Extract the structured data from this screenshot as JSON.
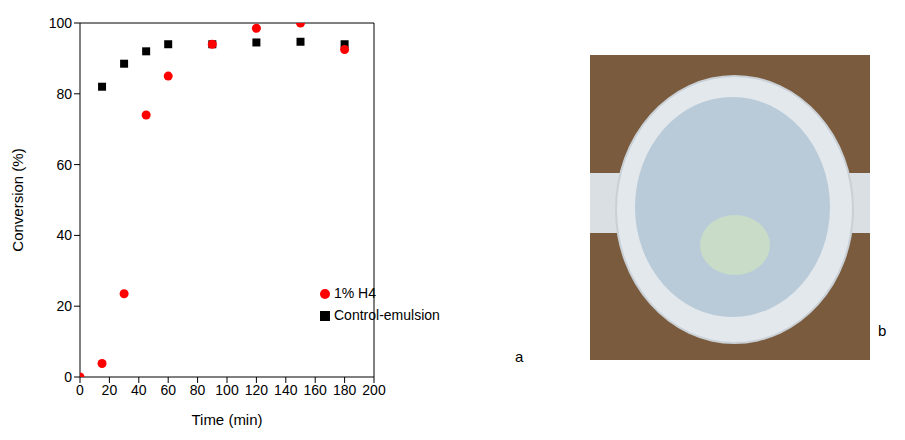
{
  "chart_data": {
    "type": "scatter",
    "x_label": "Time (min)",
    "y_label": "Conversion (%)",
    "x": [
      0,
      15,
      30,
      45,
      60,
      90,
      120,
      150,
      180
    ],
    "series": [
      {
        "name": "Control-emulsion",
        "color": "#000000",
        "marker": "square",
        "values": [
          null,
          82,
          88.5,
          92,
          94,
          94,
          94.5,
          94.7,
          94
        ]
      },
      {
        "name": "1% H4",
        "color": "#ff0000",
        "marker": "circle",
        "values": [
          0,
          3.8,
          23.5,
          74,
          85,
          94,
          98.5,
          100,
          92.5
        ]
      }
    ],
    "xlim": [
      0,
      200
    ],
    "xticks": [
      0,
      20,
      40,
      60,
      80,
      100,
      120,
      140,
      160,
      180,
      200
    ],
    "ylim": [
      0,
      100
    ],
    "yticks": [
      0,
      20,
      40,
      60,
      80,
      100
    ],
    "grid": false,
    "legend": "lower right",
    "annotations": [
      "a"
    ]
  },
  "image": {
    "label": "b"
  }
}
